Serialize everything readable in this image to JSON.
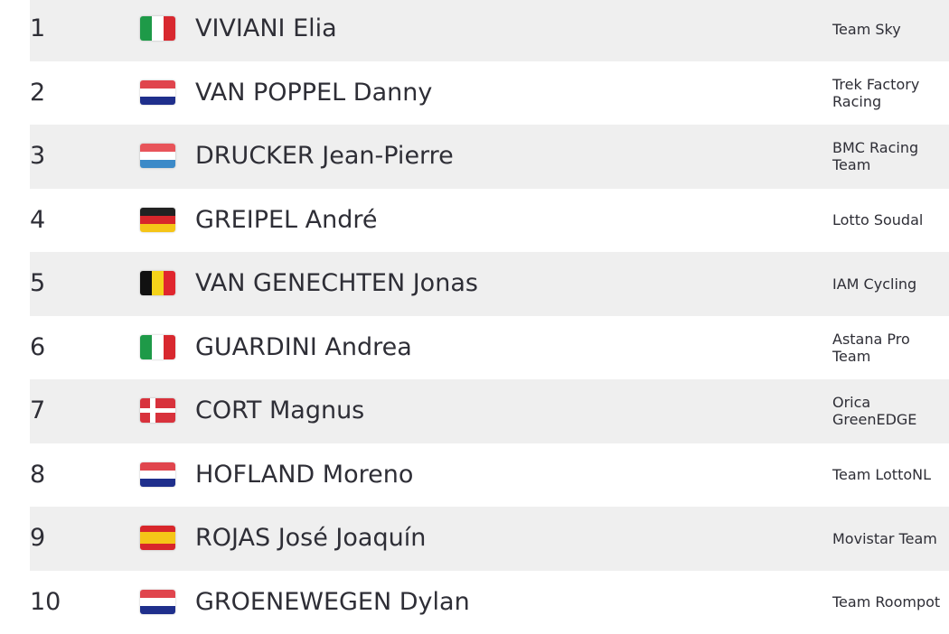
{
  "results": [
    {
      "rank": "1",
      "flag": "italy-flag",
      "name": "VIVIANI Elia",
      "team": "Team Sky"
    },
    {
      "rank": "2",
      "flag": "netherlands-flag",
      "name": "VAN POPPEL Danny",
      "team": "Trek Factory Racing"
    },
    {
      "rank": "3",
      "flag": "luxembourg-flag",
      "name": "DRUCKER Jean-Pierre",
      "team": "BMC Racing Team"
    },
    {
      "rank": "4",
      "flag": "germany-flag",
      "name": "GREIPEL André",
      "team": "Lotto Soudal"
    },
    {
      "rank": "5",
      "flag": "belgium-flag",
      "name": "VAN GENECHTEN Jonas",
      "team": "IAM Cycling"
    },
    {
      "rank": "6",
      "flag": "italy-flag",
      "name": "GUARDINI Andrea",
      "team": "Astana Pro Team"
    },
    {
      "rank": "7",
      "flag": "denmark-flag",
      "name": "CORT Magnus",
      "team": "Orica GreenEDGE"
    },
    {
      "rank": "8",
      "flag": "netherlands-flag",
      "name": "HOFLAND Moreno",
      "team": "Team LottoNL"
    },
    {
      "rank": "9",
      "flag": "spain-flag",
      "name": "ROJAS José Joaquín",
      "team": "Movistar Team"
    },
    {
      "rank": "10",
      "flag": "netherlands-flag",
      "name": "GROENEWEGEN Dylan",
      "team": "Team Roompot"
    }
  ],
  "colors": {
    "row_alt": "#efefef",
    "text": "#2e2e36"
  }
}
